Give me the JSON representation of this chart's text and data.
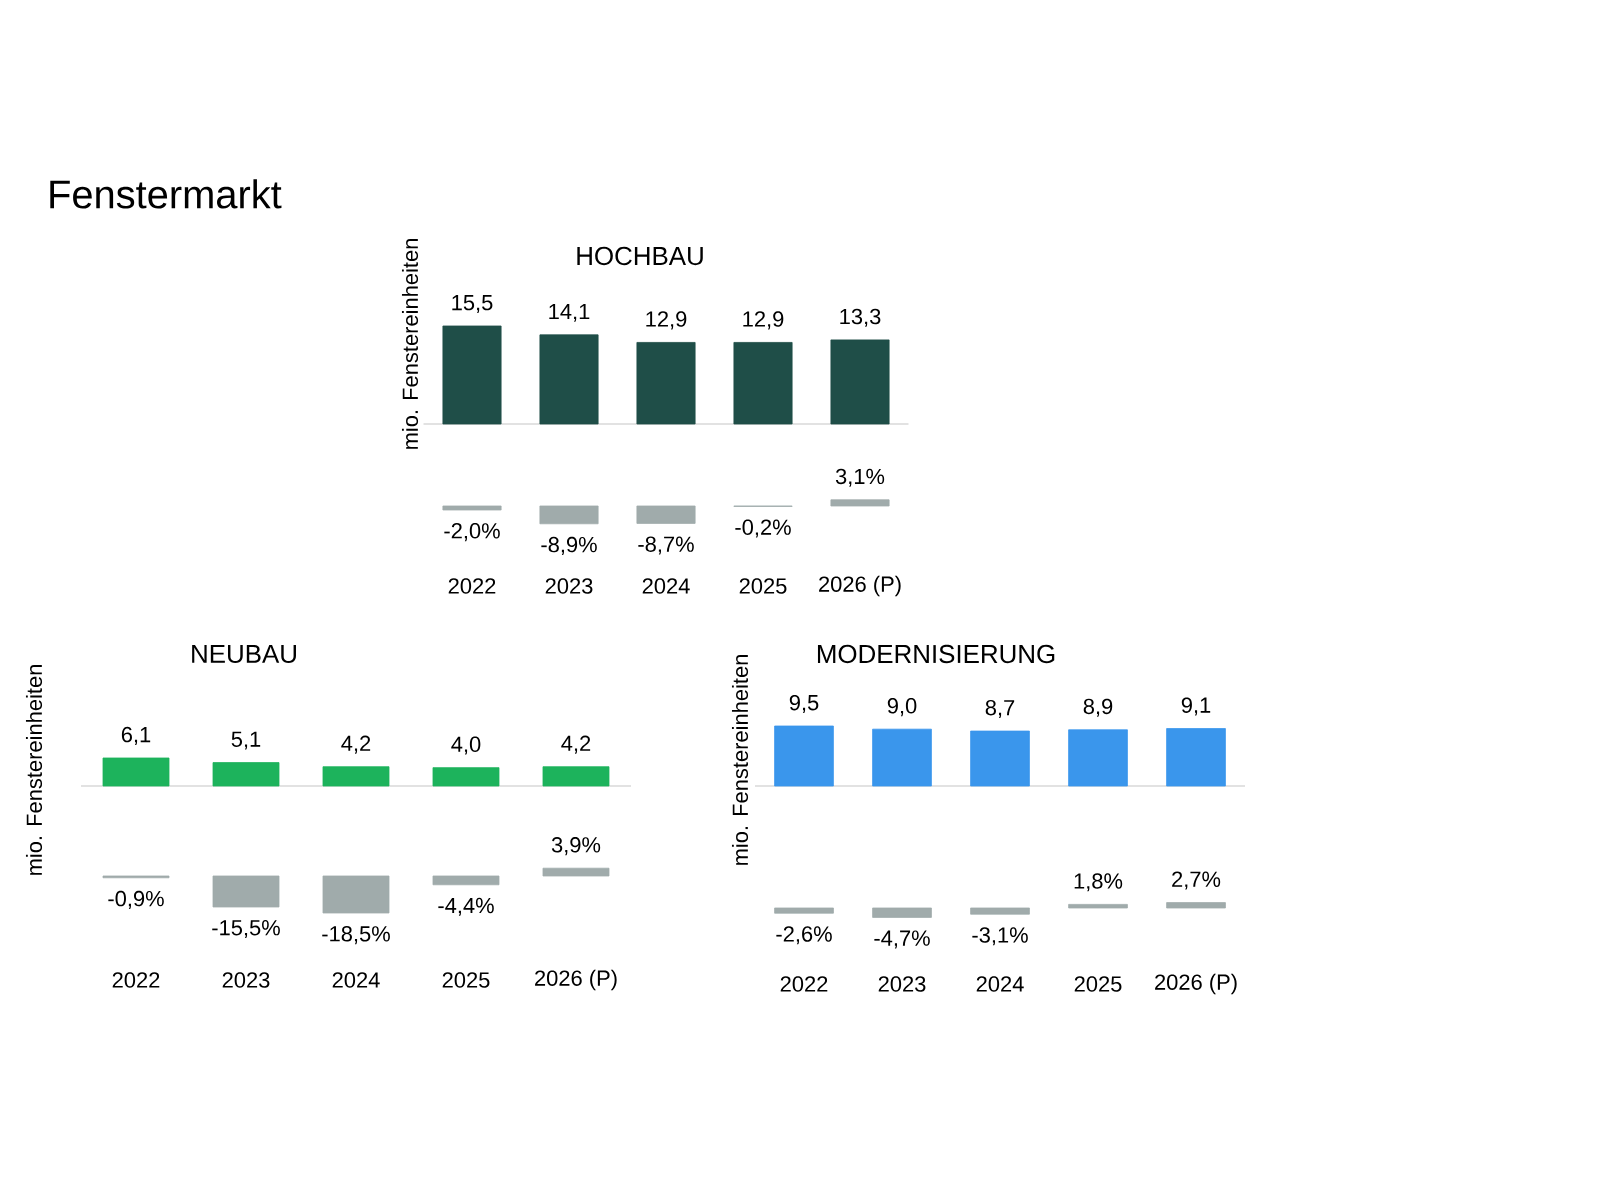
{
  "chart_data": [
    {
      "type": "other",
      "title": "Fenstermarkt"
    },
    {
      "type": "bar",
      "title": "HOCHBAU",
      "ylabel": "mio. Fenstereinheiten",
      "categories": [
        null,
        null,
        null,
        null,
        null
      ],
      "color": "#1f4e48",
      "values": [
        15.5,
        14.1,
        12.9,
        12.9,
        13.3
      ],
      "value_labels": [
        "15,5",
        "14,1",
        "12,9",
        "12,9",
        "13,3"
      ]
    },
    {
      "type": "bar",
      "categories": [
        "2022",
        "2023",
        "2024",
        "2025",
        "2026 (P)"
      ],
      "tick_labels": "x",
      "color": "#a0abab",
      "values": [
        -2.0,
        -8.9,
        -8.7,
        -0.2,
        3.1
      ],
      "value_labels": [
        "-2,0%",
        "-8,9%",
        "-8,7%",
        "-0,2%",
        "3,1%"
      ]
    },
    {
      "type": "bar",
      "title": "NEUBAU",
      "ylabel": "mio. Fenstereinheiten",
      "categories": [
        null,
        null,
        null,
        null,
        null
      ],
      "color": "#1db35c",
      "values": [
        6.1,
        5.1,
        4.2,
        4.0,
        4.2
      ],
      "value_labels": [
        "6,1",
        "5,1",
        "4,2",
        "4,0",
        "4,2"
      ]
    },
    {
      "type": "bar",
      "categories": [
        "2022",
        "2023",
        "2024",
        "2025",
        "2026 (P)"
      ],
      "tick_labels": "x",
      "color": "#a0abab",
      "values": [
        -0.9,
        -15.5,
        -18.5,
        -4.4,
        3.9
      ],
      "value_labels": [
        "-0,9%",
        "-15,5%",
        "-18,5%",
        "-4,4%",
        "3,9%"
      ]
    },
    {
      "type": "bar",
      "title": "MODERNISIERUNG",
      "ylabel": "mio. Fenstereinheiten",
      "categories": [
        null,
        null,
        null,
        null,
        null
      ],
      "color": "#3a96ec",
      "values": [
        9.5,
        9.0,
        8.7,
        8.9,
        9.1
      ],
      "value_labels": [
        "9,5",
        "9,0",
        "8,7",
        "8,9",
        "9,1"
      ]
    },
    {
      "type": "bar",
      "categories": [
        "2022",
        "2023",
        "2024",
        "2025",
        "2026 (P)"
      ],
      "tick_labels": "x",
      "color": "#a0abab",
      "values": [
        -2.6,
        -4.7,
        -3.1,
        1.8,
        2.7
      ],
      "value_labels": [
        "-2,6%",
        "-4,7%",
        "-3,1%",
        "1,8%",
        "2,7%"
      ]
    }
  ]
}
